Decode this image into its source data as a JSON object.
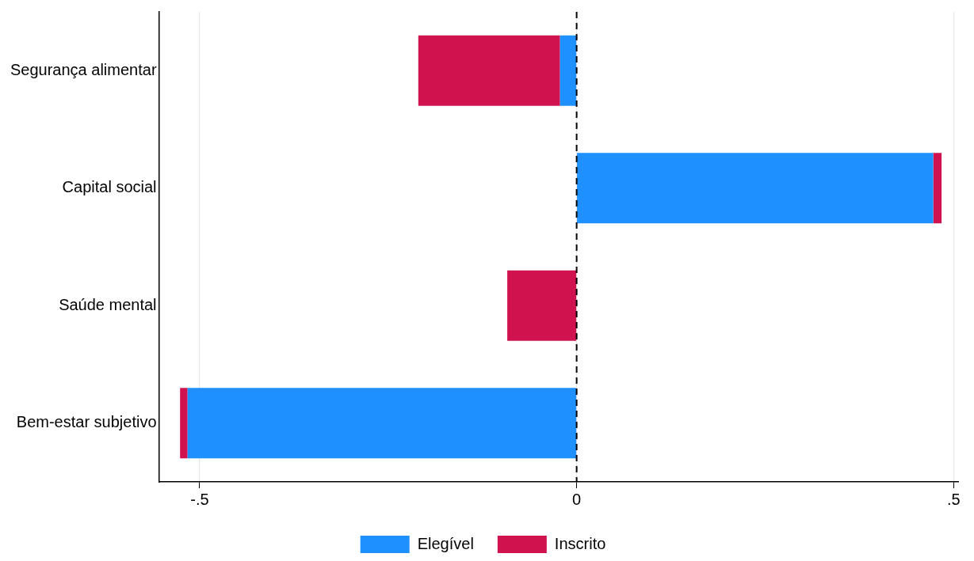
{
  "chart_data": {
    "type": "bar",
    "orientation": "horizontal",
    "stacked": true,
    "categories": [
      "Segurança alimentar",
      "Capital social",
      "Saúde mental",
      "Bem-estar subjetivo"
    ],
    "series": [
      {
        "name": "Elegível",
        "color": "#1e90ff",
        "values": [
          -0.022,
          0.473,
          0,
          -0.516
        ]
      },
      {
        "name": "Inscrito",
        "color": "#d0134f",
        "values": [
          -0.188,
          0.011,
          -0.092,
          -0.01
        ]
      }
    ],
    "xlim": [
      -0.554,
      0.506
    ],
    "xticks": [
      {
        "value": -0.5,
        "label": "-.5"
      },
      {
        "value": 0,
        "label": "0"
      },
      {
        "value": 0.5,
        "label": ".5"
      }
    ],
    "grid": "x",
    "legend": "bottom",
    "ref_lines": [
      {
        "axis": "x",
        "value": 0,
        "line_style": "dashed",
        "color": "#000000"
      }
    ]
  }
}
